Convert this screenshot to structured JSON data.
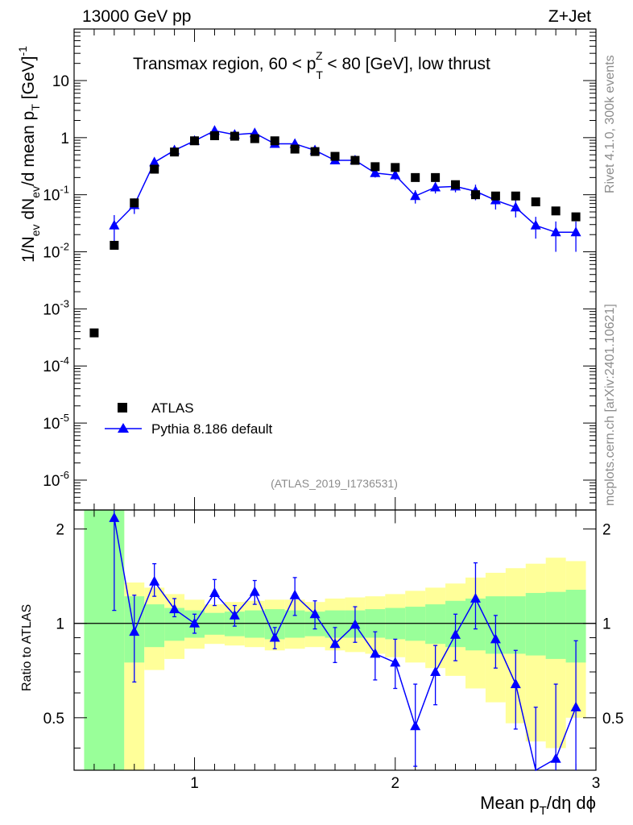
{
  "header": {
    "left": "13000 GeV pp",
    "right": "Z+Jet"
  },
  "side": {
    "top": "Rivet 4.1.0,  300k events",
    "bottom": "mcplots.cern.ch [arXiv:2401.10621]"
  },
  "colors": {
    "data": "#000000",
    "mc": "#0000ff",
    "band_inner": "#99ff99",
    "band_outer": "#ffff99",
    "watermark": "#8c8c8c"
  },
  "chart_data": {
    "type": "scatter",
    "title": "Transmax region, 60 < p_T^Z < 80 [GeV], low thrust",
    "title_parts": {
      "pre": "Transmax region, 60 < p",
      "sup": "Z",
      "sub": "T",
      "post": " < 80 [GeV], low thrust"
    },
    "analysis_label": "(ATLAS_2019_I1736531)",
    "xlabel": "Mean p_T/dη dϕ",
    "xlabel_parts": {
      "pre": "Mean p",
      "sub": "T",
      "post": "/dη dϕ"
    },
    "ylabel": "1/N_ev dN_ev/d mean p_T [GeV]^-1",
    "ylabel_parts": {
      "a": "1/N",
      "a_sub": "ev",
      "b": " dN",
      "b_sub": "ev",
      "c": "/d mean p",
      "c_sub": "T",
      "d": " [GeV]",
      "d_sup": "-1"
    },
    "ratio_ylabel": "Ratio to ATLAS",
    "xlim": [
      0.4,
      3.0
    ],
    "ylim": [
      3e-07,
      80
    ],
    "ratio_ylim": [
      0.34,
      2.3
    ],
    "x_ticks": [
      "1",
      "2",
      "3"
    ],
    "y_ticks": [
      {
        "base": "10",
        "exp": "-6"
      },
      {
        "base": "10",
        "exp": "-5"
      },
      {
        "base": "10",
        "exp": "-4"
      },
      {
        "base": "10",
        "exp": "-3"
      },
      {
        "base": "10",
        "exp": "-2"
      },
      {
        "base": "10",
        "exp": "-1"
      },
      {
        "base": "1",
        "exp": ""
      },
      {
        "base": "10",
        "exp": ""
      }
    ],
    "ratio_ticks": [
      "0.5",
      "1",
      "2"
    ],
    "legend": {
      "position": "lower-left",
      "entries": [
        "ATLAS",
        "Pythia 8.186 default"
      ]
    },
    "series": [
      {
        "name": "ATLAS",
        "marker": "square",
        "x": [
          0.5,
          0.6,
          0.7,
          0.8,
          0.9,
          1.0,
          1.1,
          1.2,
          1.3,
          1.4,
          1.5,
          1.6,
          1.7,
          1.8,
          1.9,
          2.0,
          2.1,
          2.2,
          2.3,
          2.4,
          2.5,
          2.6,
          2.7,
          2.8,
          2.9
        ],
        "y": [
          0.00038,
          0.013,
          0.072,
          0.28,
          0.56,
          0.88,
          1.08,
          1.06,
          0.96,
          0.88,
          0.63,
          0.57,
          0.47,
          0.4,
          0.31,
          0.3,
          0.2,
          0.2,
          0.15,
          0.1,
          0.095,
          0.095,
          0.075,
          0.052,
          0.041
        ]
      },
      {
        "name": "Pythia 8.186 default",
        "marker": "triangle",
        "x": [
          0.6,
          0.7,
          0.8,
          0.9,
          1.0,
          1.1,
          1.2,
          1.3,
          1.4,
          1.5,
          1.6,
          1.7,
          1.8,
          1.9,
          2.0,
          2.1,
          2.2,
          2.3,
          2.4,
          2.5,
          2.6,
          2.7,
          2.8,
          2.9
        ],
        "y": [
          0.029,
          0.066,
          0.37,
          0.6,
          0.88,
          1.32,
          1.13,
          1.2,
          0.78,
          0.78,
          0.6,
          0.4,
          0.4,
          0.24,
          0.22,
          0.095,
          0.135,
          0.14,
          0.115,
          0.08,
          0.06,
          0.029,
          0.022,
          0.022
        ],
        "y_err": [
          0.015,
          0.02,
          0.05,
          0.06,
          0.08,
          0.1,
          0.09,
          0.1,
          0.07,
          0.07,
          0.06,
          0.05,
          0.05,
          0.04,
          0.04,
          0.025,
          0.03,
          0.03,
          0.035,
          0.025,
          0.02,
          0.012,
          0.012,
          0.012
        ]
      }
    ],
    "ratio": {
      "x": [
        0.6,
        0.7,
        0.8,
        0.9,
        1.0,
        1.1,
        1.2,
        1.3,
        1.4,
        1.5,
        1.6,
        1.7,
        1.8,
        1.9,
        2.0,
        2.1,
        2.2,
        2.3,
        2.4,
        2.5,
        2.6,
        2.7,
        2.8,
        2.9
      ],
      "y": [
        2.17,
        0.94,
        1.36,
        1.11,
        1.0,
        1.25,
        1.06,
        1.26,
        0.9,
        1.23,
        1.07,
        0.86,
        0.99,
        0.8,
        0.75,
        0.47,
        0.7,
        0.92,
        1.2,
        0.89,
        0.64,
        0.32,
        0.37,
        0.54
      ],
      "err_low": [
        1.1,
        0.65,
        1.22,
        1.05,
        0.93,
        1.14,
        0.98,
        1.15,
        0.83,
        1.06,
        0.96,
        0.75,
        0.87,
        0.66,
        0.62,
        0.35,
        0.55,
        0.76,
        0.96,
        0.72,
        0.46,
        0.1,
        0.1,
        0.22
      ],
      "err_high": [
        2.3,
        1.23,
        1.55,
        1.2,
        1.07,
        1.38,
        1.14,
        1.37,
        0.97,
        1.4,
        1.18,
        0.97,
        1.13,
        0.94,
        0.89,
        0.64,
        0.85,
        1.07,
        1.56,
        1.06,
        0.82,
        0.54,
        0.64,
        0.88
      ],
      "band_x_edges": [
        0.45,
        0.65,
        0.75,
        0.85,
        0.95,
        1.05,
        1.15,
        1.25,
        1.35,
        1.45,
        1.55,
        1.65,
        1.75,
        1.85,
        1.95,
        2.05,
        2.15,
        2.25,
        2.35,
        2.45,
        2.55,
        2.65,
        2.75,
        2.85,
        2.95
      ],
      "band_inner_lo": [
        0.34,
        0.75,
        0.84,
        0.88,
        0.9,
        0.92,
        0.91,
        0.9,
        0.89,
        0.9,
        0.91,
        0.9,
        0.9,
        0.9,
        0.89,
        0.88,
        0.86,
        0.84,
        0.82,
        0.8,
        0.8,
        0.79,
        0.77,
        0.75
      ],
      "band_inner_hi": [
        2.3,
        1.22,
        1.15,
        1.12,
        1.1,
        1.08,
        1.09,
        1.1,
        1.11,
        1.1,
        1.09,
        1.1,
        1.1,
        1.11,
        1.12,
        1.13,
        1.15,
        1.18,
        1.2,
        1.22,
        1.22,
        1.25,
        1.26,
        1.28
      ],
      "band_outer_lo": [
        0.34,
        0.34,
        0.71,
        0.77,
        0.83,
        0.86,
        0.85,
        0.84,
        0.82,
        0.83,
        0.84,
        0.82,
        0.81,
        0.8,
        0.78,
        0.75,
        0.72,
        0.68,
        0.62,
        0.56,
        0.48,
        0.42,
        0.4,
        0.5
      ],
      "band_outer_hi": [
        2.3,
        1.35,
        1.3,
        1.24,
        1.19,
        1.15,
        1.17,
        1.18,
        1.19,
        1.19,
        1.17,
        1.2,
        1.21,
        1.22,
        1.24,
        1.27,
        1.3,
        1.34,
        1.4,
        1.45,
        1.5,
        1.55,
        1.62,
        1.58
      ]
    }
  }
}
